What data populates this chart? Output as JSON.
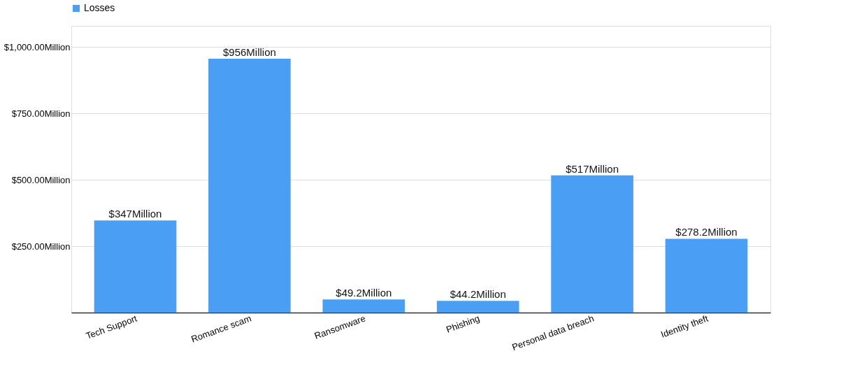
{
  "chart_data": {
    "type": "bar",
    "categories": [
      "Tech Support",
      "Romance scam",
      "Ransomware",
      "Phishing",
      "Personal data breach",
      "Identity theft"
    ],
    "series": [
      {
        "name": "Losses",
        "color": "#4a9ff5",
        "values": [
          347,
          956,
          49.2,
          44.2,
          517,
          278.2
        ],
        "value_labels": [
          "$347Million",
          "$956Million",
          "$49.2Million",
          "$44.2Million",
          "$517Million",
          "$278.2Million"
        ]
      }
    ],
    "ylim": [
      0,
      1080
    ],
    "yticks": [
      {
        "value": 250,
        "label": "$250.00Million"
      },
      {
        "value": 500,
        "label": "$500.00Million"
      },
      {
        "value": 750,
        "label": "$750.00Million"
      },
      {
        "value": 1000,
        "label": "$1,000.00Million"
      }
    ],
    "grid": "y",
    "legend": "top"
  }
}
